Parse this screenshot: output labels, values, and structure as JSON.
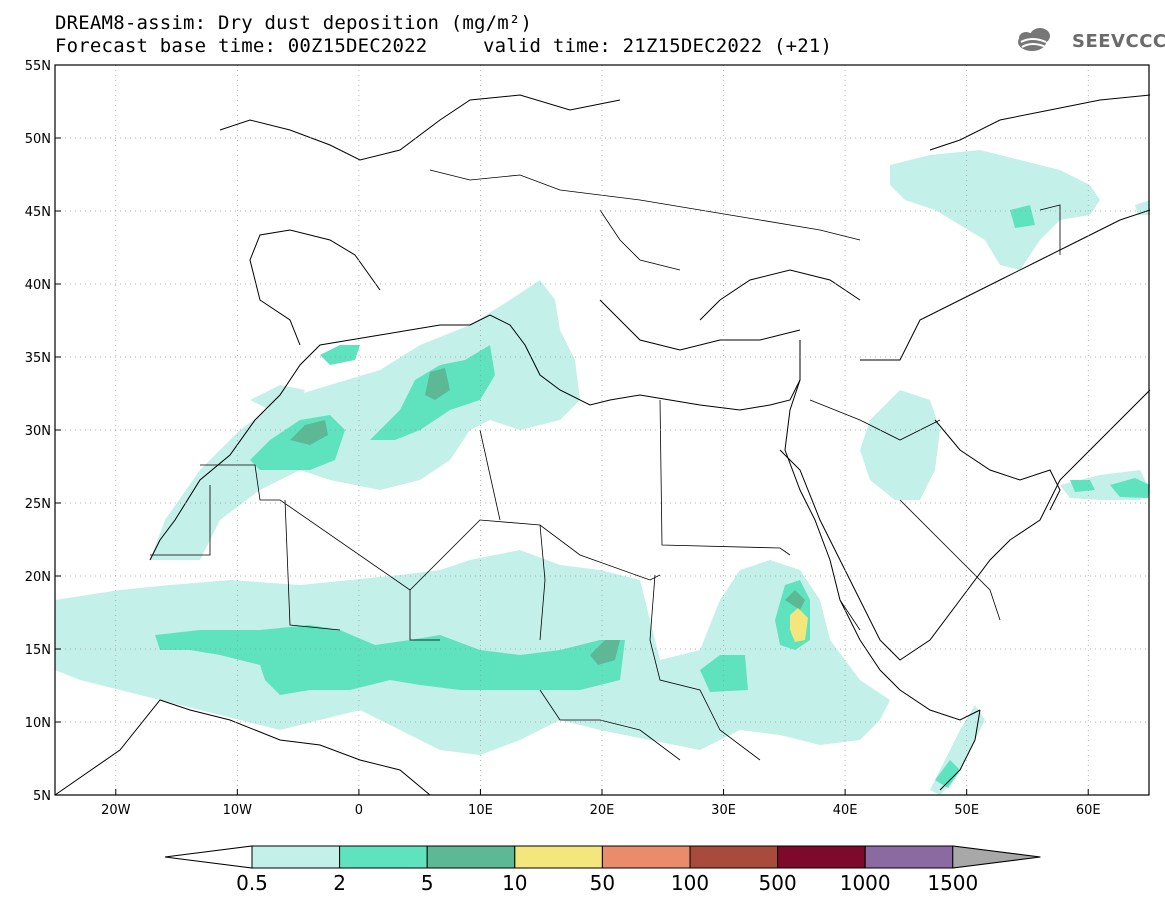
{
  "header": {
    "title": "DREAM8-assim: Dry dust deposition (mg/m²)",
    "base_time": "Forecast base time: 00Z15DEC2022",
    "valid_time": "valid time: 21Z15DEC2022 (+21)",
    "logo_text": "SEEVCCC"
  },
  "map": {
    "lon_labels": [
      "20W",
      "10W",
      "0",
      "10E",
      "20E",
      "30E",
      "40E",
      "50E",
      "60E"
    ],
    "lat_labels": [
      "55N",
      "50N",
      "45N",
      "40N",
      "35N",
      "30N",
      "25N",
      "20N",
      "15N",
      "10N",
      "5N"
    ],
    "lon_range": [
      -25,
      65
    ],
    "lat_range": [
      5,
      55
    ]
  },
  "legend": {
    "labels": [
      "0.5",
      "2",
      "5",
      "10",
      "50",
      "100",
      "500",
      "1000",
      "1500"
    ],
    "colors": [
      "#c3f0e9",
      "#5fe3be",
      "#5cb895",
      "#f2e67d",
      "#e88c6a",
      "#a84b3c",
      "#7d0a2c",
      "#8b6aa1",
      "#a8a8a8"
    ]
  }
}
